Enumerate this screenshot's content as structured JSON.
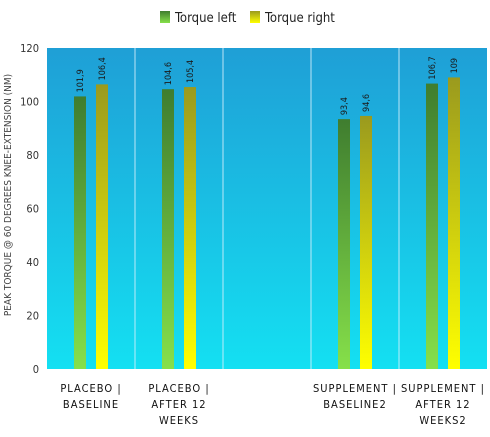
{
  "chart_data": {
    "type": "bar",
    "ylabel": "PEAK TORQUE @ 60 DEGREES KNEE-EXTENSION (NM)",
    "ylim": [
      0,
      120
    ],
    "yticks": [
      0,
      20,
      40,
      60,
      80,
      100,
      120
    ],
    "categories": [
      [
        "PLACEBO |",
        "BASELINE"
      ],
      [
        "PLACEBO |",
        "AFTER 12",
        "WEEKS"
      ],
      [],
      [
        "SUPPLEMENT |",
        "BASELINE2"
      ],
      [
        "SUPPLEMENT |",
        "AFTER 12",
        "WEEKS2"
      ]
    ],
    "series": [
      {
        "name": "Torque left",
        "values": [
          101.9,
          104.6,
          null,
          93.4,
          106.7
        ],
        "labels": [
          "101,9",
          "104,6",
          "",
          "93,4",
          "106,7"
        ],
        "color_top": "#3f7d2f",
        "color_bottom": "#86e04a"
      },
      {
        "name": "Torque right",
        "values": [
          106.4,
          105.4,
          null,
          94.6,
          109
        ],
        "labels": [
          "106,4",
          "105,4",
          "",
          "94,6",
          "109"
        ],
        "color_top": "#9a9a1e",
        "color_bottom": "#ffff00"
      }
    ],
    "legend_position": "top",
    "background_top": "#1f9fd6",
    "background_bottom": "#14e0f2"
  }
}
